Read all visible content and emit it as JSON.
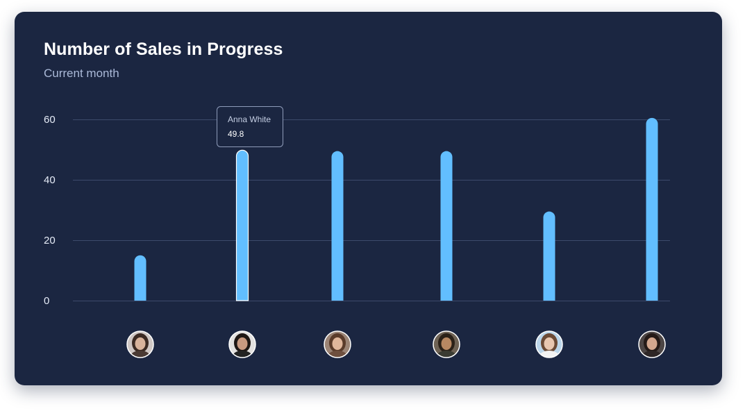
{
  "card": {
    "title": "Number of Sales in Progress",
    "subtitle": "Current month"
  },
  "colors": {
    "background": "#1b2641",
    "bar": "#62beff",
    "grid": "#3d4a6b",
    "tooltip_border": "#8f9cba"
  },
  "chart_data": {
    "type": "bar",
    "categories": [
      "person-1-avatar",
      "person-2-avatar",
      "person-3-avatar",
      "person-4-avatar",
      "person-5-avatar",
      "person-6-avatar"
    ],
    "values": [
      15,
      49.8,
      49.5,
      49.5,
      29.5,
      60.5
    ],
    "ylim": [
      0,
      60
    ],
    "yticks": [
      0,
      20,
      40,
      60
    ],
    "grid": true,
    "tooltip": {
      "index": 1,
      "name": "Anna White",
      "value": "49.8"
    }
  }
}
